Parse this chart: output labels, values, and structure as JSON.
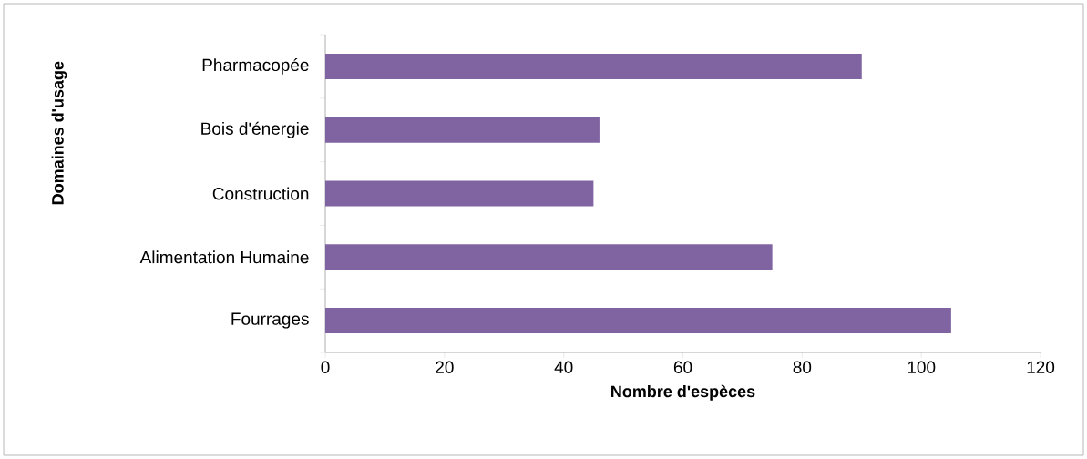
{
  "chart_data": {
    "type": "bar",
    "orientation": "horizontal",
    "xlabel": "Nombre d'espèces",
    "ylabel": "Domaines d'usage",
    "categories": [
      "Pharmacopée",
      "Bois d'énergie",
      "Construction",
      "Alimentation Humaine",
      "Fourrages"
    ],
    "values": [
      90,
      46,
      45,
      75,
      105
    ],
    "color": "#8064a2",
    "xlim": [
      0,
      120
    ],
    "xticks": [
      0,
      20,
      40,
      60,
      80,
      100,
      120
    ],
    "grid": false
  }
}
